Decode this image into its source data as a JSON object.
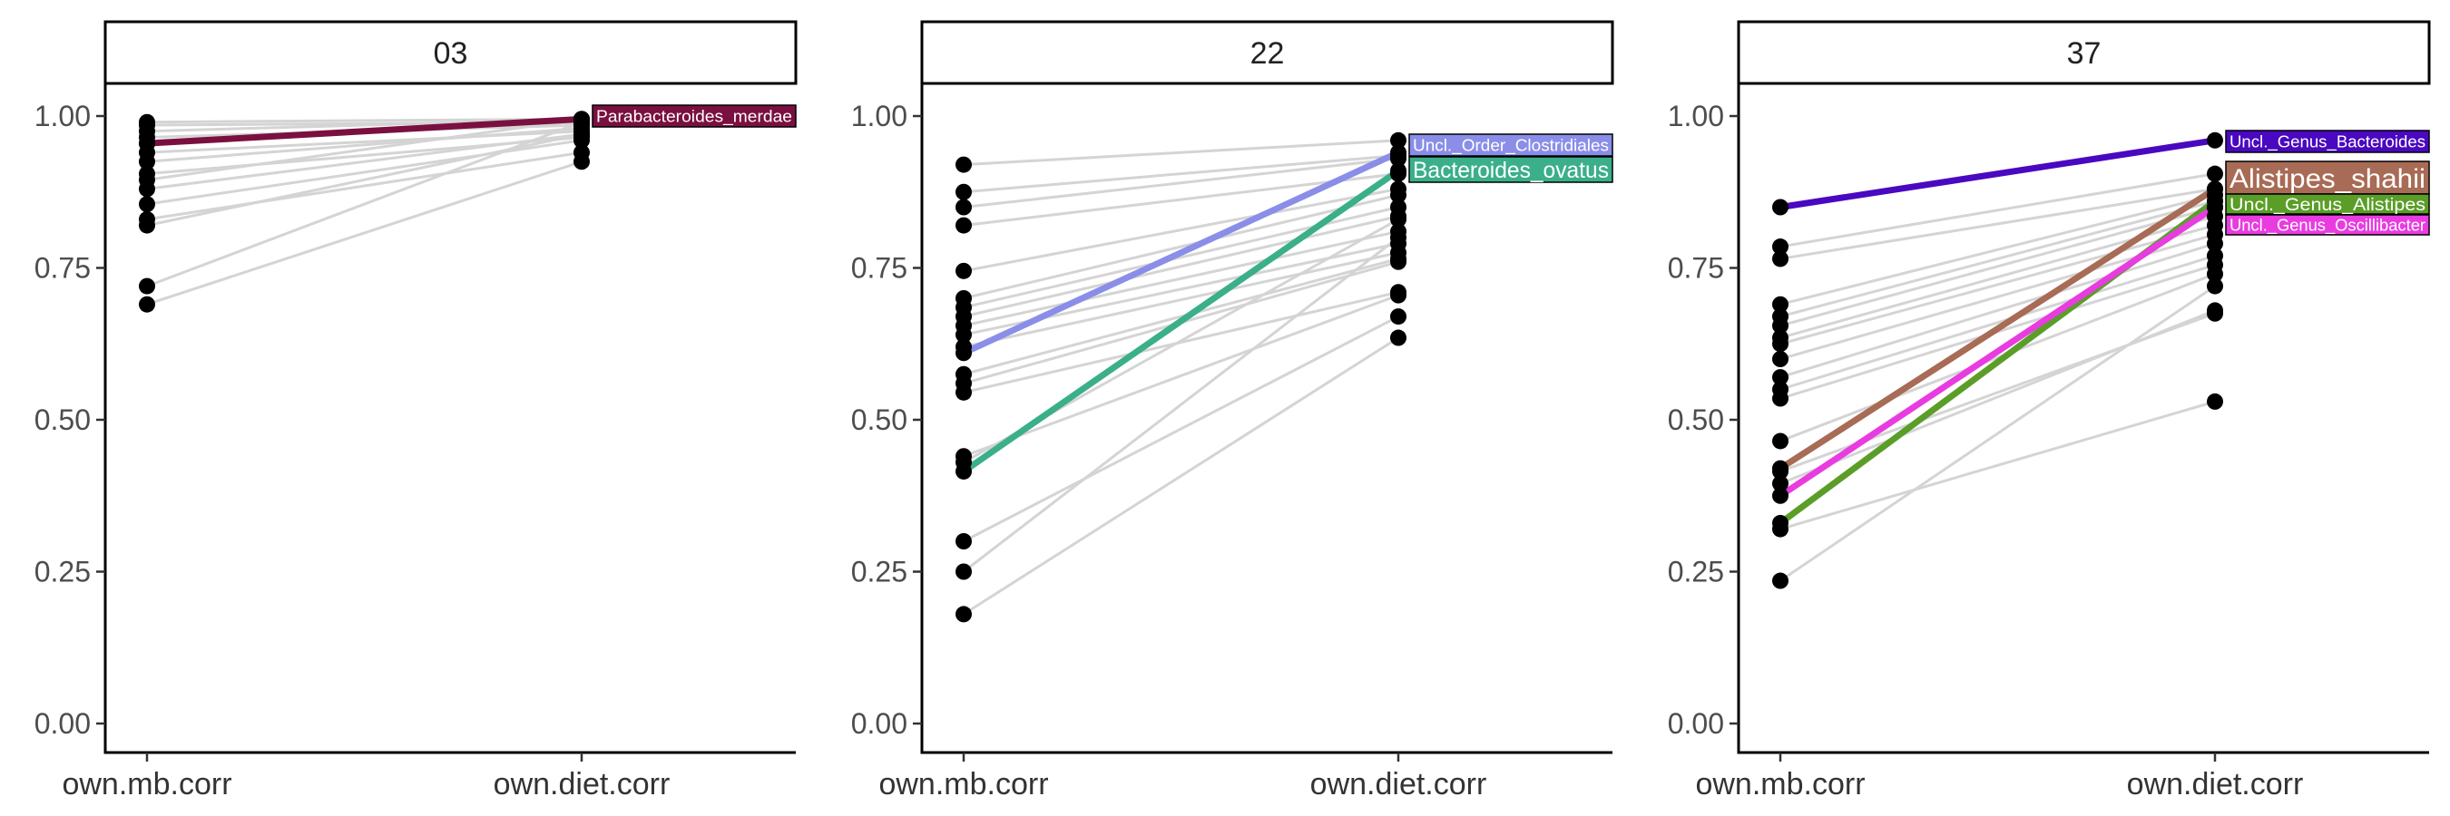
{
  "chart_data": [
    {
      "type": "line",
      "panel": "03",
      "categories": [
        "own.mb.corr",
        "own.diet.corr"
      ],
      "ylim": [
        0,
        1.1
      ],
      "yticks": [
        "0.00",
        "0.25",
        "0.50",
        "0.75",
        "1.00"
      ],
      "grid": false,
      "background_series": [
        [
          0.99,
          0.995
        ],
        [
          0.985,
          0.99
        ],
        [
          0.975,
          0.995
        ],
        [
          0.965,
          0.985
        ],
        [
          0.955,
          0.99
        ],
        [
          0.94,
          0.975
        ],
        [
          0.925,
          0.98
        ],
        [
          0.905,
          0.965
        ],
        [
          0.895,
          0.995
        ],
        [
          0.88,
          0.97
        ],
        [
          0.855,
          0.96
        ],
        [
          0.83,
          0.94
        ],
        [
          0.82,
          0.97
        ],
        [
          0.72,
          0.99
        ],
        [
          0.69,
          0.925
        ]
      ],
      "highlighted_series": [
        {
          "name": "Parabacteroides_merdae",
          "values": [
            0.955,
            0.995
          ],
          "color": "#7a1040"
        }
      ]
    },
    {
      "type": "line",
      "panel": "22",
      "categories": [
        "own.mb.corr",
        "own.diet.corr"
      ],
      "ylim": [
        0,
        1.1
      ],
      "yticks": [
        "0.00",
        "0.25",
        "0.50",
        "0.75",
        "1.00"
      ],
      "grid": false,
      "background_series": [
        [
          0.92,
          0.96
        ],
        [
          0.875,
          0.935
        ],
        [
          0.85,
          0.93
        ],
        [
          0.82,
          0.905
        ],
        [
          0.745,
          0.88
        ],
        [
          0.7,
          0.87
        ],
        [
          0.685,
          0.85
        ],
        [
          0.67,
          0.835
        ],
        [
          0.655,
          0.81
        ],
        [
          0.64,
          0.79
        ],
        [
          0.62,
          0.775
        ],
        [
          0.575,
          0.765
        ],
        [
          0.56,
          0.76
        ],
        [
          0.545,
          0.71
        ],
        [
          0.44,
          0.705
        ],
        [
          0.43,
          0.83
        ],
        [
          0.3,
          0.67
        ],
        [
          0.25,
          0.8
        ],
        [
          0.18,
          0.635
        ]
      ],
      "highlighted_series": [
        {
          "name": "Uncl._Order_Clostridiales",
          "values": [
            0.61,
            0.94
          ],
          "color": "#8a8ee8"
        },
        {
          "name": "Bacteroides_ovatus",
          "values": [
            0.415,
            0.91
          ],
          "color": "#3aaf8a"
        }
      ]
    },
    {
      "type": "line",
      "panel": "37",
      "categories": [
        "own.mb.corr",
        "own.diet.corr"
      ],
      "ylim": [
        0,
        1.1
      ],
      "yticks": [
        "0.00",
        "0.25",
        "0.50",
        "0.75",
        "1.00"
      ],
      "grid": false,
      "background_series": [
        [
          0.785,
          0.905
        ],
        [
          0.765,
          0.88
        ],
        [
          0.69,
          0.87
        ],
        [
          0.67,
          0.86
        ],
        [
          0.655,
          0.85
        ],
        [
          0.635,
          0.835
        ],
        [
          0.625,
          0.82
        ],
        [
          0.6,
          0.805
        ],
        [
          0.57,
          0.79
        ],
        [
          0.55,
          0.77
        ],
        [
          0.535,
          0.755
        ],
        [
          0.465,
          0.74
        ],
        [
          0.415,
          0.675
        ],
        [
          0.395,
          0.68
        ],
        [
          0.32,
          0.53
        ],
        [
          0.235,
          0.72
        ]
      ],
      "highlighted_series": [
        {
          "name": "Uncl._Genus_Bacteroides",
          "values": [
            0.85,
            0.96
          ],
          "color": "#4a08c0"
        },
        {
          "name": "Alistipes_shahii",
          "values": [
            0.42,
            0.88
          ],
          "color": "#a86b55"
        },
        {
          "name": "Uncl._Genus_Alistipes",
          "values": [
            0.33,
            0.86
          ],
          "color": "#5a9e28"
        },
        {
          "name": "Uncl._Genus_Oscillibacter",
          "values": [
            0.375,
            0.85
          ],
          "color": "#e83ce0"
        }
      ]
    }
  ],
  "colors": {
    "background_line": "#d4d4d4",
    "point": "#000000",
    "axis": "#000000",
    "tag_border": "#000000"
  }
}
